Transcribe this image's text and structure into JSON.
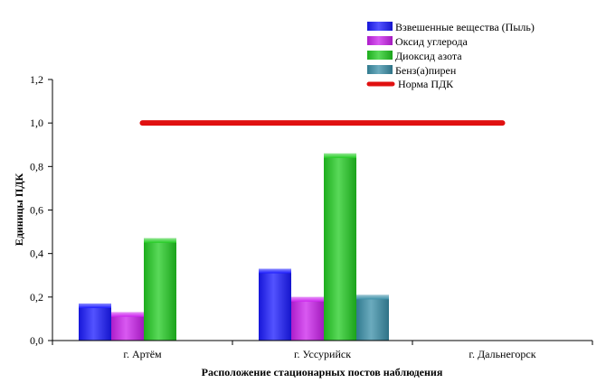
{
  "chart_data": {
    "type": "bar",
    "title": "",
    "xlabel": "Расположение стационарных постов наблюдения",
    "ylabel": "Единицы ПДК",
    "ylim": [
      0,
      1.2
    ],
    "yticks": [
      "0,0",
      "0,2",
      "0,4",
      "0,6",
      "0,8",
      "1,0",
      "1,2"
    ],
    "categories": [
      "г. Артём",
      "г. Уссурийск",
      "г. Дальнегорск"
    ],
    "series": [
      {
        "name": "Взвешенные вещества (Пыль)",
        "color": "#1a1aff",
        "values": [
          0.17,
          0.33,
          0
        ]
      },
      {
        "name": "Оксид углерода",
        "color": "#cc22ee",
        "values": [
          0.13,
          0.2,
          0
        ]
      },
      {
        "name": "Диоксид азота",
        "color": "#22cc22",
        "values": [
          0.47,
          0.86,
          0
        ]
      },
      {
        "name": "Бенз(а)пирен",
        "color": "#3a8fa8",
        "values": [
          0,
          0.21,
          0
        ]
      }
    ],
    "reference_line": {
      "name": "Норма ПДК",
      "value": 1.0,
      "color": "#e01010",
      "from_category": 0,
      "to_category": 2
    },
    "grid": false,
    "legend_position": "top-right"
  }
}
